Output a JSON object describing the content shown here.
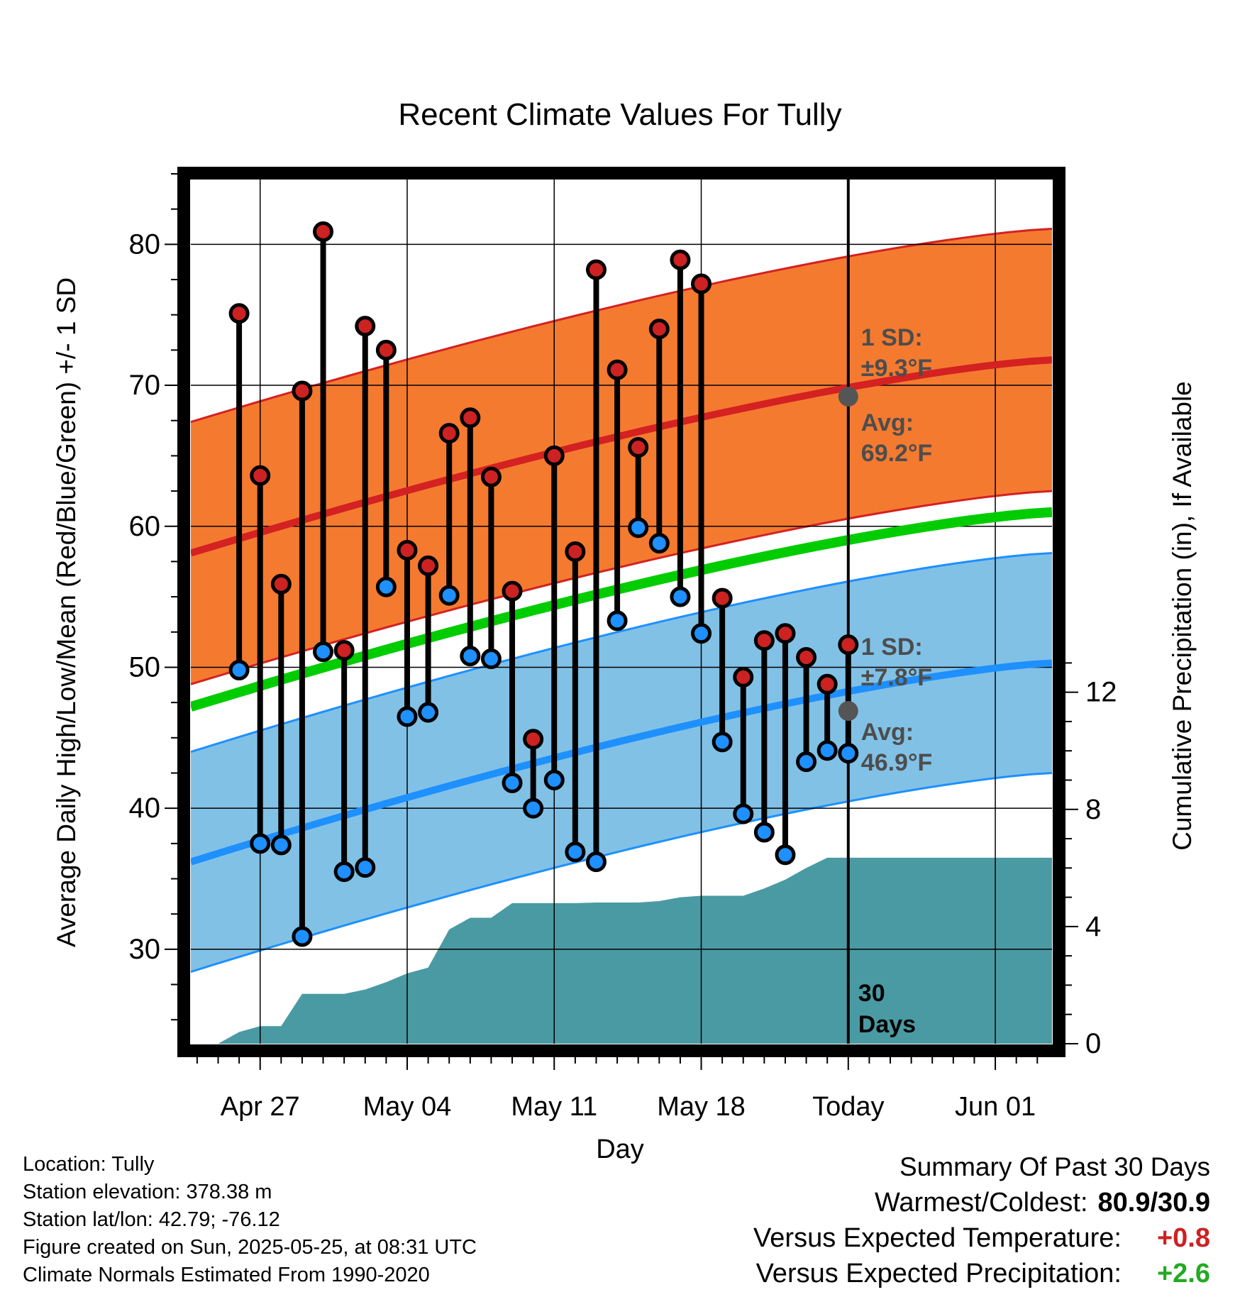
{
  "chart_data": {
    "type": "line",
    "title": "Recent Climate Values For Tully",
    "xlabel": "Day",
    "ylabel": "Average Daily High/Low/Mean (Red/Blue/Green) +/- 1 SD",
    "y2label": "Cumulative Precipitation (in), If Available",
    "ylim": [
      23.3,
      85
    ],
    "y2lim": [
      0,
      29.7
    ],
    "xticks": [
      "Apr 27",
      "May 04",
      "May 11",
      "May 18",
      "Today",
      "Jun 01"
    ],
    "yticks": [
      30,
      40,
      50,
      60,
      70,
      80
    ],
    "y2ticks": [
      0,
      4,
      8,
      12
    ],
    "today_marker_label": "30 Days",
    "grid": true,
    "x_start_day": -31.3,
    "x_end_day": 9.7,
    "highs": [
      75.1,
      63.6,
      55.9,
      69.6,
      80.9,
      51.2,
      74.2,
      72.5,
      58.3,
      57.2,
      66.6,
      67.7,
      63.5,
      55.4,
      44.9,
      65.0,
      58.2,
      78.2,
      71.1,
      65.6,
      74.0,
      78.9,
      77.2,
      54.9,
      49.3,
      51.9,
      52.4,
      50.7,
      48.8,
      51.6
    ],
    "lows": [
      49.8,
      37.5,
      37.4,
      30.9,
      51.1,
      35.5,
      35.8,
      55.7,
      46.5,
      46.8,
      55.1,
      50.8,
      50.6,
      41.8,
      40.0,
      42.0,
      36.9,
      36.2,
      53.3,
      59.9,
      58.8,
      55.0,
      52.4,
      44.7,
      39.6,
      38.3,
      36.7,
      43.3,
      44.1,
      43.9
    ],
    "normal_high_range": [
      58.1,
      71.8
    ],
    "normal_low_range": [
      36.2,
      50.3
    ],
    "normal_mean_range": [
      47.2,
      61.0
    ],
    "sd_high": 9.3,
    "sd_low": 7.8,
    "annotations": {
      "high_sd_label": "1 SD:",
      "high_sd_value": "±9.3°F",
      "high_avg_label": "Avg:",
      "high_avg_value": "69.2°F",
      "low_sd_label": "1 SD:",
      "low_sd_value": "±7.8°F",
      "low_avg_label": "Avg:",
      "low_avg_value": "46.9°F",
      "today_high_avg": 69.2,
      "today_low_avg": 46.9
    },
    "precip_cumulative": [
      0.0,
      0.4,
      0.6,
      0.6,
      1.7,
      1.7,
      1.7,
      1.85,
      2.1,
      2.4,
      2.6,
      3.9,
      4.3,
      4.3,
      4.8,
      4.8,
      4.8,
      4.8,
      4.82,
      4.82,
      4.82,
      4.87,
      5.0,
      5.05,
      5.05,
      5.05,
      5.3,
      5.6,
      6.0,
      6.35,
      6.35
    ]
  },
  "info": {
    "location": "Location: Tully",
    "elevation": "Station elevation: 378.38 m",
    "latlon": "Station lat/lon: 42.79; -76.12",
    "created": "Figure created on Sun, 2025-05-25, at 08:31 UTC",
    "normals": "Climate Normals Estimated From 1990-2020"
  },
  "summary": {
    "heading": "Summary Of Past 30 Days",
    "warm_cold_label": "Warmest/Coldest:",
    "warm_cold_value": "80.9/30.9",
    "temp_label": "Versus Expected Temperature:",
    "temp_value": "+0.8",
    "precip_label": "Versus Expected Precipitation:",
    "precip_value": "+2.6"
  },
  "colors": {
    "high_band": "#f47a30",
    "high_line": "#d42121",
    "low_band": "#82c1e6",
    "low_line": "#1e90ff",
    "mean_line": "#00cc00",
    "precip": "#4a9aa3",
    "high_dot": "#cc2222",
    "low_dot": "#1e90ff",
    "annotation": "#4d4d4d",
    "temp_anomaly": "#cc2222",
    "precip_anomaly": "#22aa22"
  }
}
